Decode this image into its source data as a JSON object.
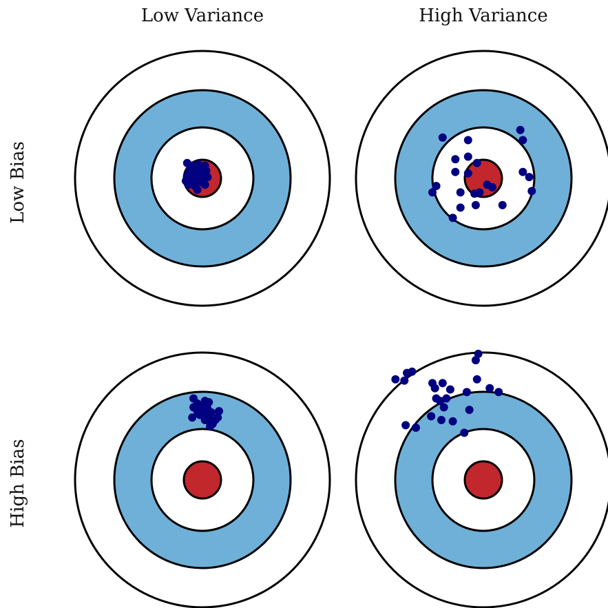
{
  "labels": {
    "columns": [
      "Low Variance",
      "High Variance"
    ],
    "rows": [
      "Low Bias",
      "High Bias"
    ]
  },
  "colors": {
    "outer_ring": "#ffffff",
    "middle_ring": "#6fb0d8",
    "inner_ring": "#ffffff",
    "bullseye": "#c1272d",
    "ring_stroke": "#000000",
    "dots": "#000080"
  },
  "panels": [
    {
      "name": "low-bias-low-variance",
      "row": "Low Bias",
      "column": "Low Variance",
      "points": [
        [
          -0.12,
          0.12
        ],
        [
          -0.08,
          0.1
        ],
        [
          -0.03,
          0.11
        ],
        [
          0.02,
          0.1
        ],
        [
          -0.1,
          0.06
        ],
        [
          -0.06,
          0.07
        ],
        [
          -0.01,
          0.06
        ],
        [
          0.03,
          0.06
        ],
        [
          -0.12,
          0.02
        ],
        [
          -0.08,
          0.02
        ],
        [
          -0.04,
          0.02
        ],
        [
          0.0,
          0.02
        ],
        [
          0.04,
          0.01
        ],
        [
          -0.13,
          -0.02
        ],
        [
          -0.09,
          -0.02
        ],
        [
          -0.05,
          -0.03
        ],
        [
          -0.01,
          -0.03
        ],
        [
          -0.11,
          -0.05
        ],
        [
          -0.06,
          -0.06
        ],
        [
          0.02,
          -0.05
        ],
        [
          -0.04,
          -0.09
        ],
        [
          -0.07,
          -0.04
        ],
        [
          -0.02,
          0.05
        ],
        [
          -0.09,
          0.09
        ]
      ]
    },
    {
      "name": "low-bias-high-variance",
      "row": "Low Bias",
      "column": "High Variance",
      "points": [
        [
          -0.32,
          0.32
        ],
        [
          -0.12,
          0.3
        ],
        [
          0.29,
          0.38
        ],
        [
          0.31,
          0.3
        ],
        [
          -0.22,
          0.15
        ],
        [
          -0.12,
          0.17
        ],
        [
          -0.05,
          0.12
        ],
        [
          -0.22,
          0.05
        ],
        [
          -0.12,
          0.04
        ],
        [
          0.31,
          0.05
        ],
        [
          0.36,
          0.01
        ],
        [
          -0.4,
          -0.11
        ],
        [
          -0.37,
          -0.06
        ],
        [
          0.38,
          -0.1
        ],
        [
          -0.18,
          -0.11
        ],
        [
          -0.07,
          -0.12
        ],
        [
          -0.03,
          -0.11
        ],
        [
          0.03,
          -0.05
        ],
        [
          0.07,
          -0.07
        ],
        [
          -0.24,
          -0.31
        ],
        [
          -0.18,
          -0.23
        ],
        [
          -0.06,
          -0.21
        ],
        [
          0.15,
          -0.21
        ]
      ]
    },
    {
      "name": "high-bias-low-variance",
      "row": "High Bias",
      "column": "Low Variance",
      "points": [
        [
          -0.07,
          0.64
        ],
        [
          -0.04,
          0.6
        ],
        [
          0.02,
          0.62
        ],
        [
          0.05,
          0.61
        ],
        [
          -0.07,
          0.57
        ],
        [
          0.0,
          0.58
        ],
        [
          0.04,
          0.56
        ],
        [
          -0.04,
          0.54
        ],
        [
          0.01,
          0.53
        ],
        [
          0.07,
          0.53
        ],
        [
          0.13,
          0.54
        ],
        [
          0.12,
          0.49
        ],
        [
          -0.08,
          0.49
        ],
        [
          -0.02,
          0.51
        ],
        [
          0.05,
          0.5
        ],
        [
          0.02,
          0.47
        ],
        [
          0.06,
          0.46
        ],
        [
          0.1,
          0.47
        ],
        [
          0.06,
          0.42
        ],
        [
          0.08,
          0.44
        ]
      ]
    },
    {
      "name": "high-bias-high-variance",
      "row": "High Bias",
      "column": "High Variance",
      "points": [
        [
          -0.04,
          0.99
        ],
        [
          -0.06,
          0.94
        ],
        [
          -0.56,
          0.85
        ],
        [
          -0.6,
          0.84
        ],
        [
          -0.69,
          0.79
        ],
        [
          -0.62,
          0.78
        ],
        [
          -0.4,
          0.76
        ],
        [
          -0.32,
          0.76
        ],
        [
          -0.38,
          0.72
        ],
        [
          -0.26,
          0.71
        ],
        [
          -0.05,
          0.79
        ],
        [
          0.05,
          0.72
        ],
        [
          -0.13,
          0.69
        ],
        [
          0.12,
          0.69
        ],
        [
          -0.37,
          0.64
        ],
        [
          -0.34,
          0.62
        ],
        [
          -0.29,
          0.64
        ],
        [
          -0.31,
          0.57
        ],
        [
          -0.41,
          0.5
        ],
        [
          -0.33,
          0.47
        ],
        [
          -0.11,
          0.55
        ],
        [
          -0.61,
          0.43
        ],
        [
          -0.53,
          0.41
        ],
        [
          -0.15,
          0.37
        ],
        [
          -0.24,
          0.46
        ]
      ]
    }
  ]
}
